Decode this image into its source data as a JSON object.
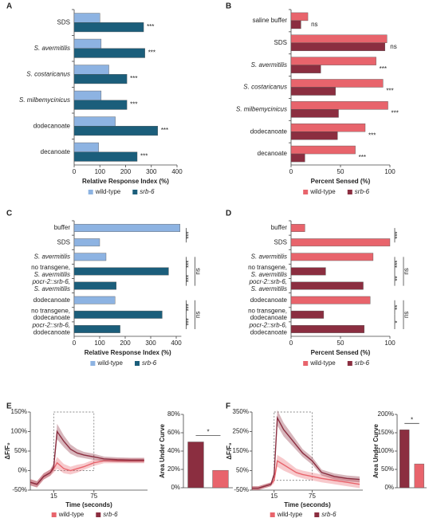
{
  "chart_data": [
    {
      "panel": "A",
      "type": "bar",
      "horizontal": true,
      "categories": [
        "SDS",
        "S. avermitilis",
        "S. costaricanus",
        "S. milbemycinicus",
        "dodecanoate",
        "decanoate"
      ],
      "series": [
        {
          "name": "wild-type",
          "color": "#8db3e2",
          "values": [
            100,
            105,
            135,
            105,
            160,
            95
          ]
        },
        {
          "name": "srb-6",
          "color": "#1b5e7b",
          "values": [
            270,
            275,
            205,
            205,
            325,
            245
          ]
        }
      ],
      "significance": [
        "***",
        "***",
        "***",
        "***",
        "***",
        "***"
      ],
      "xlabel": "Relative Response Index (%)",
      "xlim": [
        0,
        400
      ],
      "xticks": [
        0,
        100,
        200,
        300,
        400
      ]
    },
    {
      "panel": "B",
      "type": "bar",
      "horizontal": true,
      "categories": [
        "saline buffer",
        "SDS",
        "S. avermitilis",
        "S. costaricanus",
        "S. milbemycinicus",
        "dodecanoate",
        "decanoate"
      ],
      "series": [
        {
          "name": "wild-type",
          "color": "#e8646c",
          "values": [
            17,
            97,
            86,
            93,
            98,
            75,
            65
          ]
        },
        {
          "name": "srb-6",
          "color": "#8b2e40",
          "values": [
            10,
            95,
            30,
            45,
            48,
            47,
            14
          ]
        }
      ],
      "significance": [
        "ns",
        "ns",
        "***",
        "***",
        "***",
        "***",
        "***"
      ],
      "xlabel": "Percent Sensed (%)",
      "xlim": [
        0,
        100
      ],
      "xticks": [
        0,
        50,
        100
      ]
    },
    {
      "panel": "C",
      "type": "bar",
      "horizontal": true,
      "categories": [
        "buffer",
        "SDS",
        "S. avermitilis",
        "no transgene,\nS. avermitilis",
        "pocr-2::srb-6,\nS. avermitilis",
        "dodecanoate",
        "no transgene,\ndodecanoate",
        "pocr-2::srb-6,\ndodecanoate"
      ],
      "series": [
        {
          "name": "wild-type",
          "color": "#8db3e2",
          "values": [
            415,
            100,
            125,
            null,
            null,
            160,
            null,
            null
          ]
        },
        {
          "name": "srb-6",
          "color": "#1b5e7b",
          "values": [
            null,
            null,
            null,
            370,
            165,
            null,
            345,
            180
          ]
        }
      ],
      "comparisons": [
        "***",
        "***",
        "***",
        "ns",
        "***",
        "***",
        "ns"
      ],
      "xlabel": "Relative Response Index (%)",
      "xlim": [
        0,
        420
      ],
      "xticks": [
        0,
        100,
        200,
        300,
        400
      ]
    },
    {
      "panel": "D",
      "type": "bar",
      "horizontal": true,
      "categories": [
        "buffer",
        "SDS",
        "S. avermitilis",
        "no transgene,\nS. avermitilis",
        "pocr-2::srb-6,\nS. avermitilis",
        "dodecanoate",
        "no transgene,\ndodecanoate",
        "pocr-2::srb-6,\ndodecanoate"
      ],
      "series": [
        {
          "name": "wild-type",
          "color": "#e8646c",
          "values": [
            14,
            100,
            83,
            null,
            null,
            80,
            null,
            null
          ]
        },
        {
          "name": "srb-6",
          "color": "#8b2e40",
          "values": [
            null,
            null,
            null,
            35,
            73,
            null,
            33,
            74
          ]
        }
      ],
      "comparisons": [
        "***",
        "***",
        "**",
        "ns",
        "**",
        "*",
        "ns"
      ],
      "xlabel": "Percent Sensed (%)",
      "xlim": [
        0,
        100
      ],
      "xticks": [
        0,
        50,
        100
      ]
    },
    {
      "panel": "E",
      "type": "line",
      "x": [
        -20,
        -10,
        0,
        10,
        15,
        20,
        30,
        40,
        50,
        60,
        75,
        90,
        110,
        130,
        150
      ],
      "series": [
        {
          "name": "wild-type",
          "color": "#e8646c",
          "values": [
            -30,
            -35,
            -15,
            -5,
            5,
            20,
            5,
            0,
            5,
            10,
            20,
            25,
            25,
            25,
            25
          ],
          "errors": [
            8,
            8,
            8,
            8,
            10,
            15,
            12,
            10,
            10,
            8,
            8,
            6,
            6,
            6,
            6
          ]
        },
        {
          "name": "srb-6",
          "color": "#8b2e40",
          "values": [
            -30,
            -35,
            -15,
            -5,
            10,
            100,
            75,
            55,
            45,
            40,
            35,
            30,
            28,
            27,
            27
          ],
          "errors": [
            8,
            8,
            8,
            8,
            10,
            20,
            15,
            12,
            10,
            8,
            8,
            6,
            6,
            6,
            6
          ]
        }
      ],
      "xlabel": "Time (seconds)",
      "ylabel": "ΔF/F₀",
      "xlim": [
        -20,
        155
      ],
      "xticks": [
        15,
        75
      ],
      "ylim": [
        -50,
        150
      ],
      "yticks": [
        {
          "value": -50,
          "label": "-50%"
        },
        {
          "value": 0,
          "label": "0%"
        },
        {
          "value": 50,
          "label": "50%"
        },
        {
          "value": 100,
          "label": "100%"
        },
        {
          "value": 150,
          "label": "150%"
        }
      ]
    },
    {
      "type": "bar",
      "values": [
        50,
        19
      ],
      "colors": [
        "#8b2e40",
        "#e8646c"
      ],
      "ylabel": "Area Under Curve",
      "significance": "*",
      "ylim": [
        0,
        80
      ],
      "yticks": [
        {
          "value": 0,
          "label": "0%"
        },
        {
          "value": 20,
          "label": "20%"
        },
        {
          "value": 40,
          "label": "40%"
        },
        {
          "value": 60,
          "label": "60%"
        },
        {
          "value": 80,
          "label": "80%"
        }
      ]
    },
    {
      "panel": "F",
      "type": "line",
      "x": [
        -20,
        -10,
        0,
        10,
        15,
        20,
        30,
        40,
        50,
        60,
        75,
        90,
        110,
        130,
        150
      ],
      "series": [
        {
          "name": "wild-type",
          "color": "#e8646c",
          "values": [
            -40,
            -40,
            -30,
            -20,
            0,
            100,
            80,
            60,
            40,
            30,
            20,
            10,
            0,
            -10,
            -20
          ],
          "errors": [
            10,
            10,
            10,
            10,
            15,
            30,
            30,
            25,
            20,
            20,
            20,
            20,
            20,
            20,
            20
          ]
        },
        {
          "name": "srb-6",
          "color": "#8b2e40",
          "values": [
            -40,
            -40,
            -30,
            -20,
            30,
            320,
            260,
            220,
            180,
            140,
            100,
            40,
            20,
            10,
            5
          ],
          "errors": [
            10,
            10,
            10,
            10,
            15,
            40,
            35,
            30,
            25,
            20,
            20,
            15,
            15,
            15,
            15
          ]
        }
      ],
      "xlabel": "Time (seconds)",
      "ylabel": "ΔF/F₀",
      "xlim": [
        -20,
        155
      ],
      "xticks": [
        15,
        75
      ],
      "ylim": [
        -50,
        350
      ],
      "yticks": [
        {
          "value": -50,
          "label": "-50%"
        },
        {
          "value": 50,
          "label": "50%"
        },
        {
          "value": 150,
          "label": "150%"
        },
        {
          "value": 250,
          "label": "250%"
        },
        {
          "value": 350,
          "label": "350%"
        }
      ]
    },
    {
      "type": "bar",
      "values": [
        158,
        65
      ],
      "colors": [
        "#8b2e40",
        "#e8646c"
      ],
      "ylabel": "Area Under Curve",
      "significance": "*",
      "ylim": [
        0,
        200
      ],
      "yticks": [
        {
          "value": 0,
          "label": "0%"
        },
        {
          "value": 50,
          "label": "50%"
        },
        {
          "value": 100,
          "label": "100%"
        },
        {
          "value": 150,
          "label": "150%"
        },
        {
          "value": 200,
          "label": "200%"
        }
      ]
    }
  ]
}
